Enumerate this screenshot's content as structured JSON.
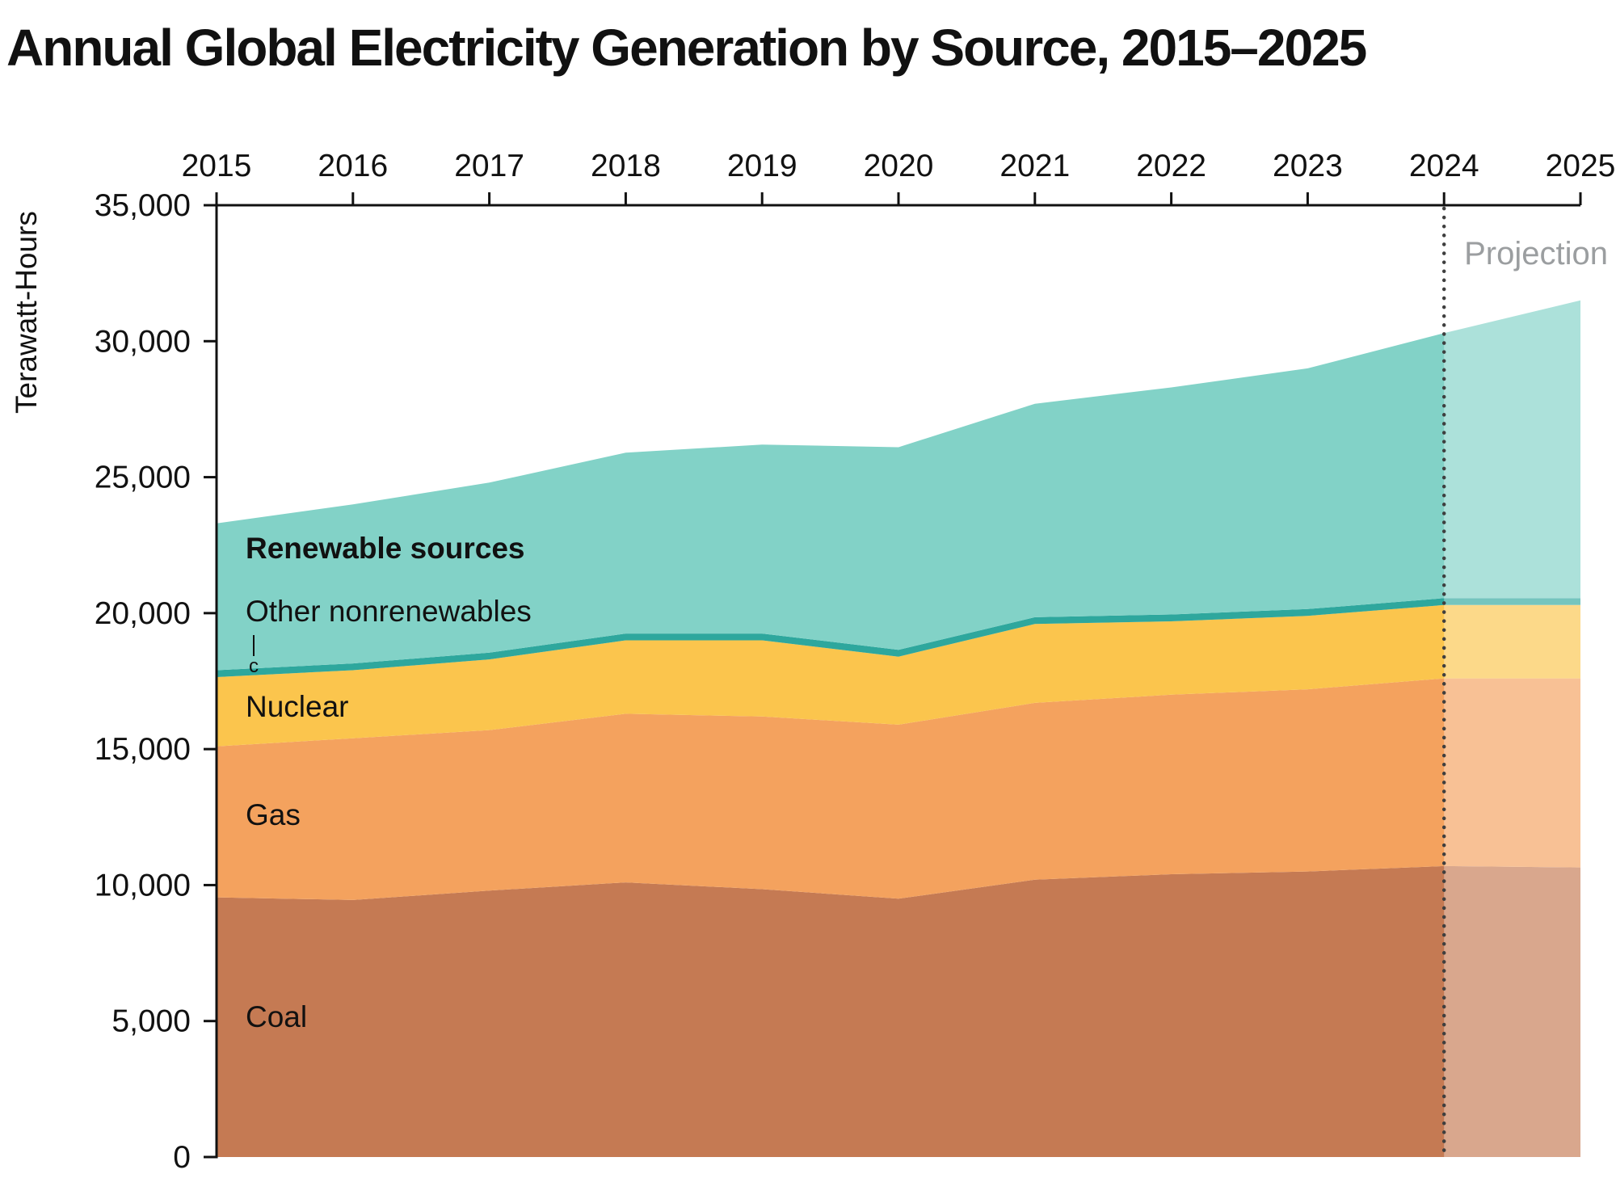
{
  "page": {
    "title": "Annual Global Electricity Generation by Source, 2015–2025"
  },
  "labels": {
    "renewables": "Renewable sources",
    "other": "Other nonrenewables",
    "footnote": "c",
    "nuclear": "Nuclear",
    "gas": "Gas",
    "coal": "Coal",
    "projection": "Projection"
  },
  "chart_data": {
    "type": "area",
    "stacked": true,
    "title": "Annual Global Electricity Generation by Source, 2015–2025",
    "ylabel": "Terawatt-Hours",
    "unit": "terawatt-hours",
    "ylim": [
      0,
      35000
    ],
    "yticks": [
      0,
      5000,
      10000,
      15000,
      20000,
      25000,
      30000,
      35000
    ],
    "grid": false,
    "legend_position": "inline-annotations",
    "x": [
      2015,
      2016,
      2017,
      2018,
      2019,
      2020,
      2021,
      2022,
      2023,
      2024,
      2025
    ],
    "series": [
      {
        "name": "Coal",
        "color": "#c57a53",
        "values": [
          9550,
          9450,
          9800,
          10100,
          9850,
          9500,
          10200,
          10400,
          10500,
          10700,
          10650
        ]
      },
      {
        "name": "Gas",
        "color": "#f4a25e",
        "values": [
          5550,
          5950,
          5900,
          6200,
          6350,
          6400,
          6500,
          6600,
          6700,
          6900,
          6950
        ]
      },
      {
        "name": "Nuclear",
        "color": "#fbc54d",
        "values": [
          2550,
          2500,
          2600,
          2700,
          2800,
          2500,
          2900,
          2700,
          2700,
          2700,
          2700
        ]
      },
      {
        "name": "Other nonrenewables",
        "color": "#2ea79d",
        "values": [
          250,
          250,
          250,
          250,
          250,
          250,
          250,
          250,
          250,
          250,
          250
        ]
      },
      {
        "name": "Renewable sources",
        "color": "#82d2c7",
        "values": [
          5400,
          5850,
          6250,
          6650,
          6950,
          7450,
          7850,
          8350,
          8850,
          9750,
          10950
        ]
      }
    ],
    "totals": [
      23300,
      24000,
      24800,
      25900,
      26200,
      26100,
      27700,
      28300,
      29000,
      30300,
      31500
    ],
    "projection": {
      "from": 2024,
      "label": "Projection",
      "divider_color": "#3f3f3f",
      "overlay_opacity": 0.34
    },
    "colors": {
      "axis": "#111111",
      "text": "#111111",
      "projection_label": "#9b9ea0",
      "background": "#ffffff"
    }
  }
}
